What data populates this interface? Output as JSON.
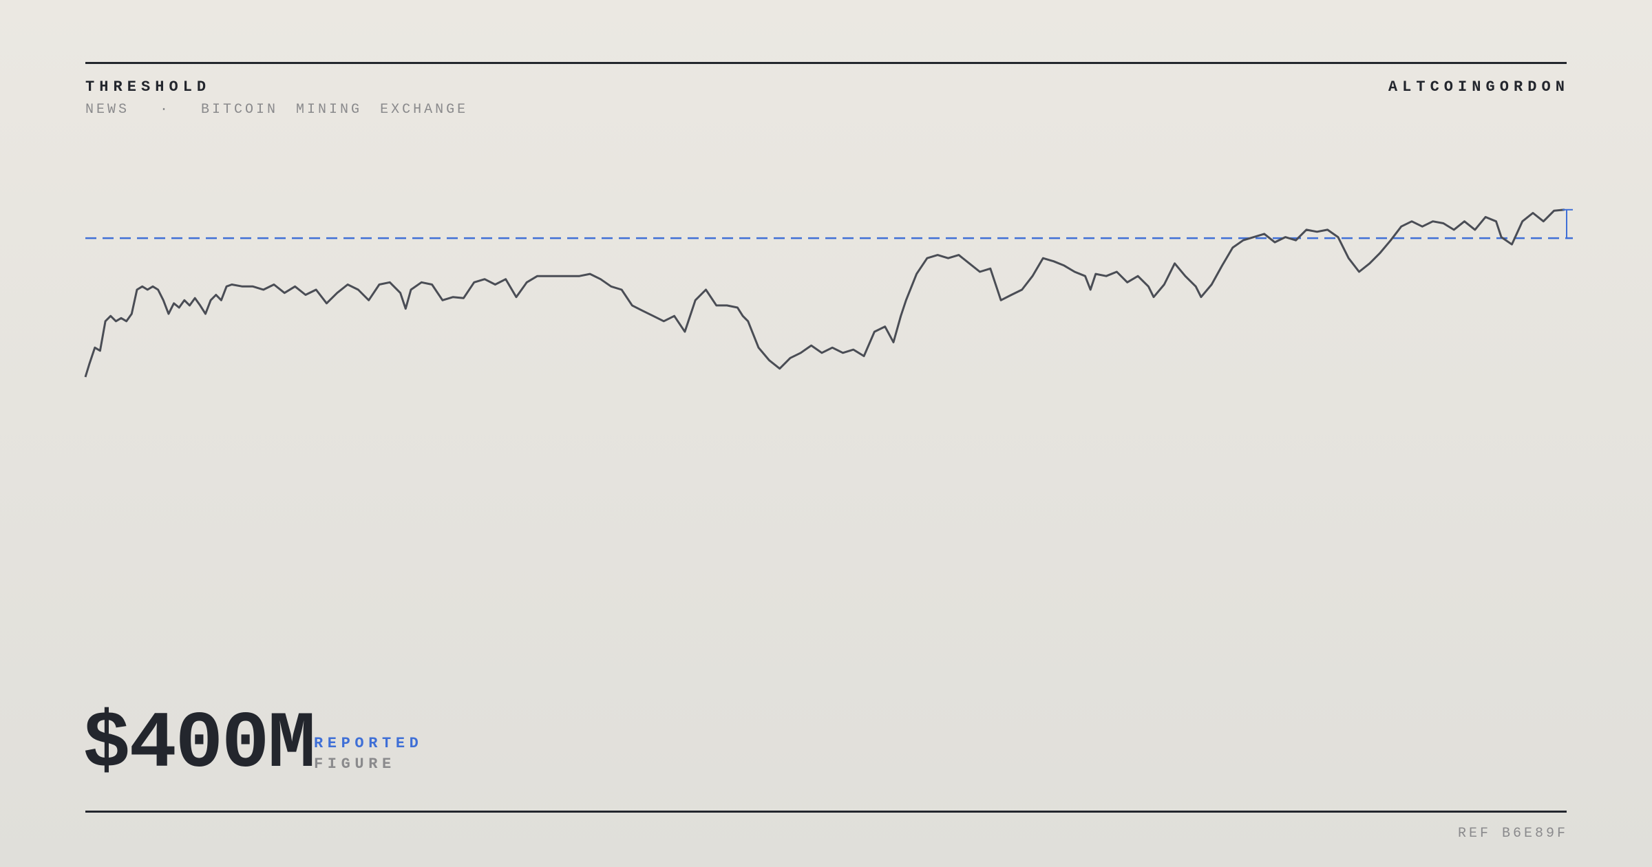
{
  "header": {
    "brand": "THRESHOLD",
    "site": "ALTCOINGORDON",
    "nav": [
      "NEWS",
      "·",
      "BITCOIN",
      "MINING",
      "EXCHANGE"
    ]
  },
  "chart_data": {
    "type": "line",
    "x": [
      81,
      85,
      90,
      95,
      100,
      105,
      110,
      115,
      120,
      125,
      130,
      135,
      140,
      145,
      150,
      155,
      160,
      165,
      170,
      175,
      180,
      185,
      190,
      195,
      200,
      205,
      210,
      215,
      220,
      230,
      240,
      250,
      260,
      270,
      280,
      290,
      300,
      310,
      320,
      330,
      340,
      350,
      360,
      370,
      380,
      385,
      390,
      400,
      410,
      420,
      430,
      440,
      450,
      460,
      470,
      480,
      490,
      500,
      510,
      520,
      530,
      540,
      550,
      560,
      570,
      580,
      590,
      600,
      610,
      620,
      630,
      640,
      650,
      660,
      670,
      680,
      690,
      700,
      705,
      710,
      720,
      730,
      740,
      750,
      760,
      770,
      780,
      790,
      800,
      810,
      820,
      830,
      840,
      848,
      855,
      860,
      870,
      880,
      890,
      900,
      910,
      920,
      930,
      940,
      950,
      960,
      970,
      980,
      990,
      1000,
      1010,
      1020,
      1030,
      1035,
      1040,
      1050,
      1060,
      1070,
      1080,
      1090,
      1095,
      1105,
      1115,
      1125,
      1135,
      1140,
      1150,
      1160,
      1170,
      1180,
      1190,
      1200,
      1210,
      1220,
      1230,
      1240,
      1250,
      1260,
      1270,
      1280,
      1290,
      1300,
      1310,
      1320,
      1330,
      1340,
      1350,
      1360,
      1370,
      1380,
      1390,
      1400,
      1410,
      1420,
      1425,
      1435,
      1445,
      1455,
      1465,
      1475,
      1485
    ],
    "values": [
      1.2,
      8.8,
      17.6,
      15.9,
      32.4,
      35.3,
      32.4,
      34.1,
      32.4,
      36.5,
      50,
      51.8,
      50,
      51.8,
      50,
      44.1,
      36.5,
      42.4,
      40,
      44.1,
      41.2,
      45.3,
      41.2,
      36.5,
      44.1,
      47.1,
      44.1,
      51.8,
      52.9,
      51.8,
      51.8,
      50,
      52.9,
      48.2,
      51.8,
      47.1,
      50,
      42.4,
      48.2,
      52.9,
      50,
      44.1,
      52.9,
      54.1,
      48.2,
      39.4,
      50,
      54.1,
      52.9,
      44.1,
      45.9,
      45.3,
      54.1,
      55.9,
      52.9,
      55.9,
      45.9,
      54.1,
      57.6,
      57.6,
      57.6,
      57.6,
      57.6,
      58.8,
      55.9,
      51.8,
      50,
      41.2,
      38.2,
      35.3,
      32.4,
      35.3,
      26.5,
      44.1,
      50,
      41.2,
      41.2,
      40,
      35.3,
      32.4,
      17.6,
      10.6,
      5.9,
      11.8,
      14.7,
      18.8,
      14.7,
      17.6,
      14.7,
      16.5,
      12.9,
      26.5,
      29.4,
      20.6,
      35.3,
      44.1,
      58.8,
      67.6,
      69.4,
      67.6,
      69.4,
      64.7,
      60,
      61.8,
      44.1,
      47.1,
      50,
      57.6,
      67.6,
      65.9,
      63.5,
      60,
      57.6,
      50,
      58.8,
      57.6,
      60,
      54.1,
      57.6,
      51.8,
      45.9,
      52.9,
      64.7,
      57.6,
      51.8,
      45.9,
      52.9,
      63.5,
      73.5,
      77.6,
      79.4,
      81.2,
      76.5,
      79.4,
      77.6,
      83.5,
      82.4,
      83.5,
      79.4,
      67.6,
      60,
      64.7,
      70.6,
      77.6,
      85.3,
      88.2,
      85.3,
      88.2,
      87.1,
      83.5,
      88.2,
      83.5,
      90.6,
      88.2,
      79.4,
      75.3,
      88.2,
      92.9,
      88.2,
      94.1,
      94.7
    ],
    "xlim": [
      81,
      1487
    ],
    "ylim": [
      0,
      100
    ],
    "color": "#4a4d55",
    "threshold": 78.8,
    "threshold_color": "#3f6fd6"
  },
  "figure": {
    "value": "$400M",
    "label": "REPORTED",
    "sublabel": "FIGURE"
  },
  "footer": {
    "ref": "REF B6E89F"
  }
}
